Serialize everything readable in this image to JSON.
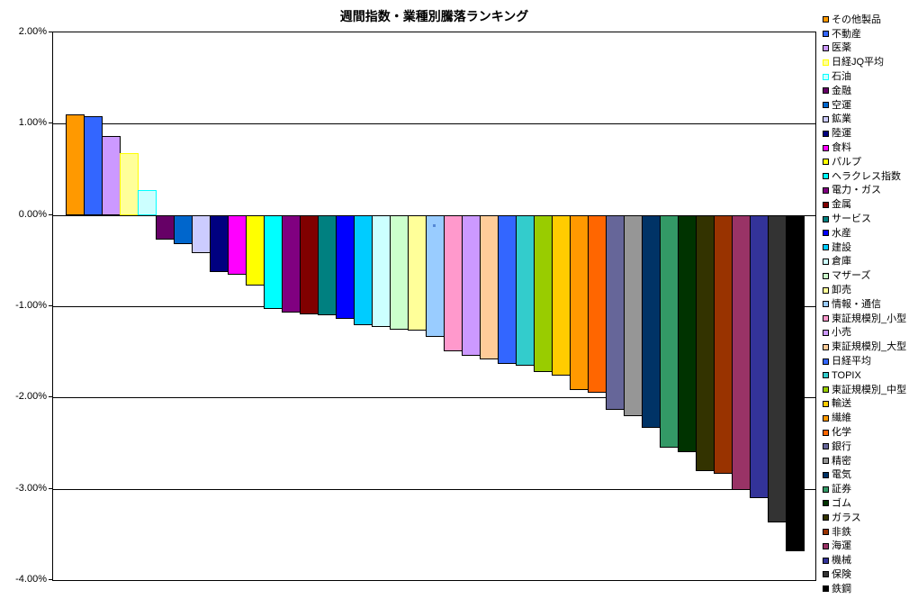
{
  "page": {
    "background": "#FFFFFF"
  },
  "chart_data": {
    "type": "bar",
    "title": "週間指数・業種別騰落ランキング",
    "xlabel": "",
    "ylabel": "",
    "unit": "percent",
    "ylim": [
      -4,
      2
    ],
    "ytick_values": [
      2,
      1,
      0,
      -1,
      -2,
      -3,
      -4
    ],
    "ytick_labels": [
      "2.00%",
      "1.00%",
      "0.00%",
      "-1.00%",
      "-2.00%",
      "-3.00%",
      "-4.00%"
    ],
    "grid": true,
    "gridline_color": "#000000",
    "plot_border_color": "#000000",
    "bar_border_default": "#000000",
    "legend_position": "right",
    "series": [
      {
        "name": "その他製品",
        "value": 1.11,
        "fill": "#FF9900"
      },
      {
        "name": "不動産",
        "value": 1.09,
        "fill": "#3366FF"
      },
      {
        "name": "医薬",
        "value": 0.87,
        "fill": "#CC99FF"
      },
      {
        "name": "日経JQ平均",
        "value": 0.68,
        "fill": "#FFFF99",
        "border": "#FFFF00"
      },
      {
        "name": "石油",
        "value": 0.28,
        "fill": "#CCFFFF",
        "border": "#00FFFF"
      },
      {
        "name": "金融",
        "value": -0.27,
        "fill": "#660066"
      },
      {
        "name": "空運",
        "value": -0.32,
        "fill": "#0066CC"
      },
      {
        "name": "鉱業",
        "value": -0.41,
        "fill": "#CCCCFF"
      },
      {
        "name": "陸運",
        "value": -0.62,
        "fill": "#000080"
      },
      {
        "name": "食料",
        "value": -0.65,
        "fill": "#FF00FF"
      },
      {
        "name": "パルプ",
        "value": -0.77,
        "fill": "#FFFF00"
      },
      {
        "name": "ヘラクレス指数",
        "value": -1.03,
        "fill": "#00FFFF"
      },
      {
        "name": "電力・ガス",
        "value": -1.07,
        "fill": "#800080"
      },
      {
        "name": "金属",
        "value": -1.09,
        "fill": "#800000"
      },
      {
        "name": "サービス",
        "value": -1.1,
        "fill": "#008080"
      },
      {
        "name": "水産",
        "value": -1.13,
        "fill": "#0000FF"
      },
      {
        "name": "建設",
        "value": -1.2,
        "fill": "#00CCFF"
      },
      {
        "name": "倉庫",
        "value": -1.22,
        "fill": "#CCFFFF"
      },
      {
        "name": "マザーズ",
        "value": -1.25,
        "fill": "#CCFFCC"
      },
      {
        "name": "卸売",
        "value": -1.26,
        "fill": "#FFFF99"
      },
      {
        "name": "情報・通信",
        "value": -1.33,
        "fill": "#99CCFF"
      },
      {
        "name": "東証規模別_小型",
        "value": -1.49,
        "fill": "#FF99CC"
      },
      {
        "name": "小売",
        "value": -1.54,
        "fill": "#CC99FF"
      },
      {
        "name": "東証規模別_大型",
        "value": -1.58,
        "fill": "#FFCC99"
      },
      {
        "name": "日経平均",
        "value": -1.63,
        "fill": "#3366FF"
      },
      {
        "name": "TOPIX",
        "value": -1.65,
        "fill": "#33CCCC"
      },
      {
        "name": "東証規模別_中型",
        "value": -1.72,
        "fill": "#99CC00"
      },
      {
        "name": "輸送",
        "value": -1.76,
        "fill": "#FFCC00"
      },
      {
        "name": "繊維",
        "value": -1.91,
        "fill": "#FF9900"
      },
      {
        "name": "化学",
        "value": -1.94,
        "fill": "#FF6600"
      },
      {
        "name": "銀行",
        "value": -2.13,
        "fill": "#666699"
      },
      {
        "name": "精密",
        "value": -2.2,
        "fill": "#969696"
      },
      {
        "name": "電気",
        "value": -2.33,
        "fill": "#003366"
      },
      {
        "name": "証券",
        "value": -2.55,
        "fill": "#339966"
      },
      {
        "name": "ゴム",
        "value": -2.6,
        "fill": "#003300"
      },
      {
        "name": "ガラス",
        "value": -2.8,
        "fill": "#333300"
      },
      {
        "name": "非鉄",
        "value": -2.83,
        "fill": "#993300"
      },
      {
        "name": "海運",
        "value": -3.01,
        "fill": "#993366"
      },
      {
        "name": "機械",
        "value": -3.1,
        "fill": "#333399"
      },
      {
        "name": "保険",
        "value": -3.37,
        "fill": "#333333"
      },
      {
        "name": "鉄鋼",
        "value": -3.68,
        "fill": "#000000"
      }
    ]
  }
}
